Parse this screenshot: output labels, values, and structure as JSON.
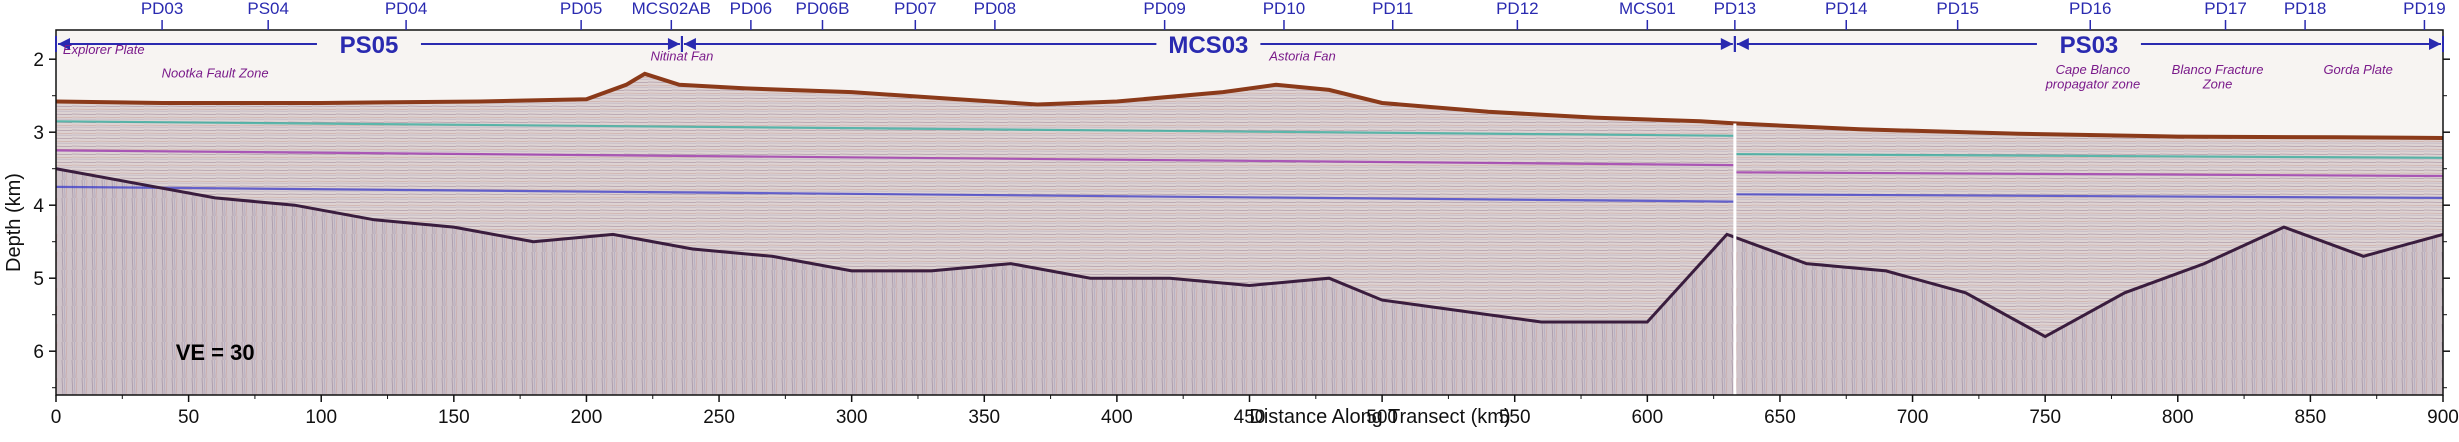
{
  "chart_data": {
    "type": "area",
    "title": "",
    "xlabel": "Distance Along Transect (km)",
    "ylabel": "Depth (km)",
    "xlim": [
      0,
      900
    ],
    "ylim": [
      6.6,
      1.6
    ],
    "y_inverted": true,
    "grid": false,
    "x_ticks": [
      0,
      50,
      100,
      150,
      200,
      250,
      300,
      350,
      400,
      450,
      500,
      550,
      600,
      650,
      700,
      750,
      800,
      850,
      900
    ],
    "y_ticks": [
      2,
      3,
      4,
      5,
      6
    ],
    "sites": [
      {
        "name": "PD03",
        "x": 40
      },
      {
        "name": "PS04",
        "x": 80
      },
      {
        "name": "PD04",
        "x": 132
      },
      {
        "name": "PD05",
        "x": 198
      },
      {
        "name": "MCS02AB",
        "x": 232
      },
      {
        "name": "PD06",
        "x": 262
      },
      {
        "name": "PD06B",
        "x": 289
      },
      {
        "name": "PD07",
        "x": 324
      },
      {
        "name": "PD08",
        "x": 354
      },
      {
        "name": "PD09",
        "x": 418
      },
      {
        "name": "PD10",
        "x": 463
      },
      {
        "name": "PD11",
        "x": 504
      },
      {
        "name": "PD12",
        "x": 551
      },
      {
        "name": "MCS01",
        "x": 600
      },
      {
        "name": "PD13",
        "x": 633
      },
      {
        "name": "PD14",
        "x": 675
      },
      {
        "name": "PD15",
        "x": 717
      },
      {
        "name": "PD16",
        "x": 767
      },
      {
        "name": "PD17",
        "x": 818
      },
      {
        "name": "PD18",
        "x": 848
      },
      {
        "name": "PD19",
        "x": 893
      }
    ],
    "surveys": [
      {
        "name": "PS05",
        "x_start": 0,
        "x_end": 236
      },
      {
        "name": "MCS03",
        "x_start": 236,
        "x_end": 633
      },
      {
        "name": "PS03",
        "x_start": 633,
        "x_end": 900
      }
    ],
    "features": [
      {
        "text": "Explorer Plate",
        "x": 18,
        "y": 1.93
      },
      {
        "text": "Nootka Fault Zone",
        "x": 60,
        "y": 2.25
      },
      {
        "text": "Nitinat Fan",
        "x": 236,
        "y": 2.02
      },
      {
        "text": "Astoria Fan",
        "x": 470,
        "y": 2.02
      },
      {
        "text": "Cape Blanco",
        "x": 768,
        "y": 2.2
      },
      {
        "text": "propagator zone",
        "x": 768,
        "y": 2.4
      },
      {
        "text": "Blanco Fracture",
        "x": 815,
        "y": 2.2
      },
      {
        "text": "Zone",
        "x": 815,
        "y": 2.4
      },
      {
        "text": "Gorda Plate",
        "x": 868,
        "y": 2.2
      }
    ],
    "seafloor": {
      "x": [
        0,
        40,
        100,
        160,
        200,
        215,
        222,
        235,
        260,
        300,
        340,
        370,
        400,
        440,
        460,
        480,
        500,
        540,
        580,
        620,
        633,
        680,
        740,
        800,
        860,
        900
      ],
      "y": [
        2.58,
        2.6,
        2.6,
        2.58,
        2.55,
        2.35,
        2.2,
        2.35,
        2.4,
        2.45,
        2.55,
        2.62,
        2.58,
        2.45,
        2.35,
        2.42,
        2.6,
        2.72,
        2.8,
        2.85,
        2.88,
        2.96,
        3.02,
        3.06,
        3.07,
        3.08
      ]
    },
    "basement": {
      "x": [
        0,
        30,
        60,
        90,
        120,
        150,
        180,
        210,
        240,
        270,
        300,
        330,
        360,
        390,
        420,
        450,
        480,
        500,
        520,
        560,
        600,
        630,
        660,
        690,
        720,
        750,
        780,
        810,
        840,
        870,
        900
      ],
      "y": [
        3.5,
        3.7,
        3.9,
        4.0,
        4.2,
        4.3,
        4.5,
        4.4,
        4.6,
        4.7,
        4.9,
        4.9,
        4.8,
        5.0,
        5.0,
        5.1,
        5.0,
        5.3,
        5.4,
        5.6,
        5.6,
        4.4,
        4.8,
        4.9,
        5.2,
        5.8,
        5.2,
        4.8,
        4.3,
        4.7,
        4.4
      ]
    },
    "reflectors": [
      {
        "x": [
          0,
          633
        ],
        "y": [
          2.85,
          3.05
        ],
        "color": "#2fae9e"
      },
      {
        "x": [
          0,
          633
        ],
        "y": [
          3.25,
          3.45
        ],
        "color": "#9a2fae"
      },
      {
        "x": [
          0,
          633
        ],
        "y": [
          3.75,
          3.95
        ],
        "color": "#3b3bc9"
      },
      {
        "x": [
          633,
          900
        ],
        "y": [
          3.3,
          3.35
        ],
        "color": "#2fae9e"
      },
      {
        "x": [
          633,
          900
        ],
        "y": [
          3.55,
          3.6
        ],
        "color": "#9a2fae"
      },
      {
        "x": [
          633,
          900
        ],
        "y": [
          3.85,
          3.9
        ],
        "color": "#3b3bc9"
      }
    ],
    "ve_label": "VE = 30",
    "colors": {
      "background_water": "#f7f4f2",
      "sediment": "#d9d0cf",
      "basement": "#b9a8b0",
      "seafloor_line": "#8b3a1a",
      "basement_line": "#3a1d3e",
      "annotation": "#2a2ab0",
      "feature_text": "#7a1a8a"
    }
  }
}
